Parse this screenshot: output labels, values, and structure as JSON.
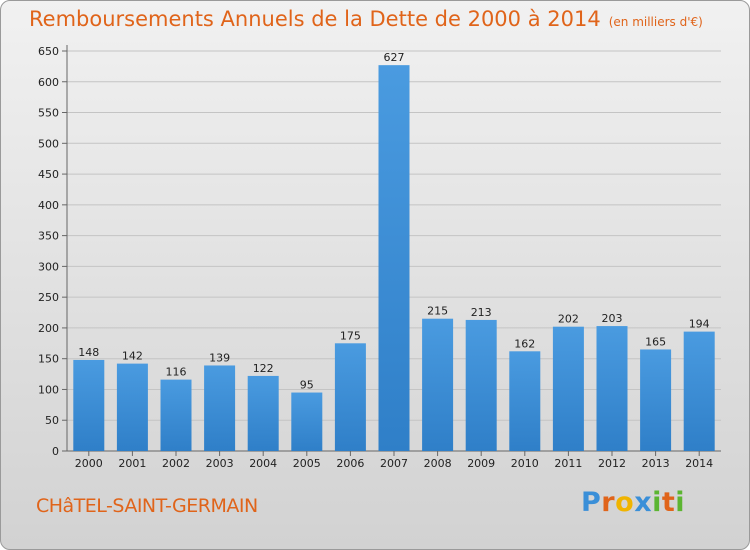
{
  "chart_data": {
    "type": "bar",
    "title": "Remboursements Annuels de la Dette de 2000 à 2014",
    "subtitle": "(en milliers d'€)",
    "categories": [
      "2000",
      "2001",
      "2002",
      "2003",
      "2004",
      "2005",
      "2006",
      "2007",
      "2008",
      "2009",
      "2010",
      "2011",
      "2012",
      "2013",
      "2014"
    ],
    "values": [
      148,
      142,
      116,
      139,
      122,
      95,
      175,
      627,
      215,
      213,
      162,
      202,
      203,
      165,
      194
    ],
    "ylim": [
      0,
      650
    ],
    "yticks": [
      0,
      50,
      100,
      150,
      200,
      250,
      300,
      350,
      400,
      450,
      500,
      550,
      600,
      650
    ],
    "grid": true,
    "bar_color": "#4a9be0",
    "bar_color_dark": "#2f7fc8",
    "title_color": "#e0641a"
  },
  "footer": {
    "commune": "CHâTEL-SAINT-GERMAIN",
    "logo_letters": [
      "P",
      "r",
      "o",
      "x",
      "i",
      "t",
      "i"
    ],
    "logo_colors": [
      "#3a8fd8",
      "#e0641a",
      "#f0b400",
      "#3a8fd8",
      "#5cb531",
      "#e0641a",
      "#5cb531"
    ]
  }
}
